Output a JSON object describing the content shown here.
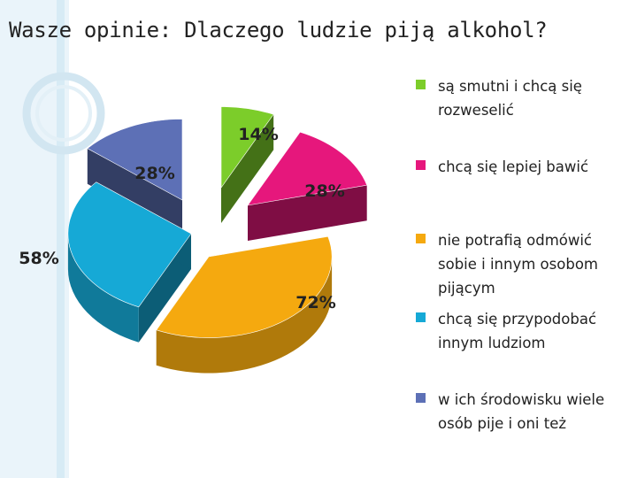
{
  "title": "Wasze opinie: Dlaczego ludzie piją alkohol?",
  "chart_data": {
    "type": "pie",
    "title": "Wasze opinie: Dlaczego ludzie piją alkohol?",
    "slices": [
      {
        "label": "są smutni i chcą się rozweselić",
        "value": 14,
        "value_label": "14%",
        "color": "#7ccd2a"
      },
      {
        "label": "chcą się lepiej bawić",
        "value": 28,
        "value_label": "28%",
        "color": "#e6177c"
      },
      {
        "label": "nie potrafią odmówić sobie i innym osobom pijącym",
        "value": 72,
        "value_label": "72%",
        "color": "#f5a90f"
      },
      {
        "label": "chcą się przypodobać innym ludziom",
        "value": 58,
        "value_label": "58%",
        "color": "#16a9d6"
      },
      {
        "label": "w ich środowisku wiele osób pije i oni też",
        "value": 28,
        "value_label": "28%",
        "color": "#5d70b6"
      }
    ],
    "legend_position": "right"
  }
}
